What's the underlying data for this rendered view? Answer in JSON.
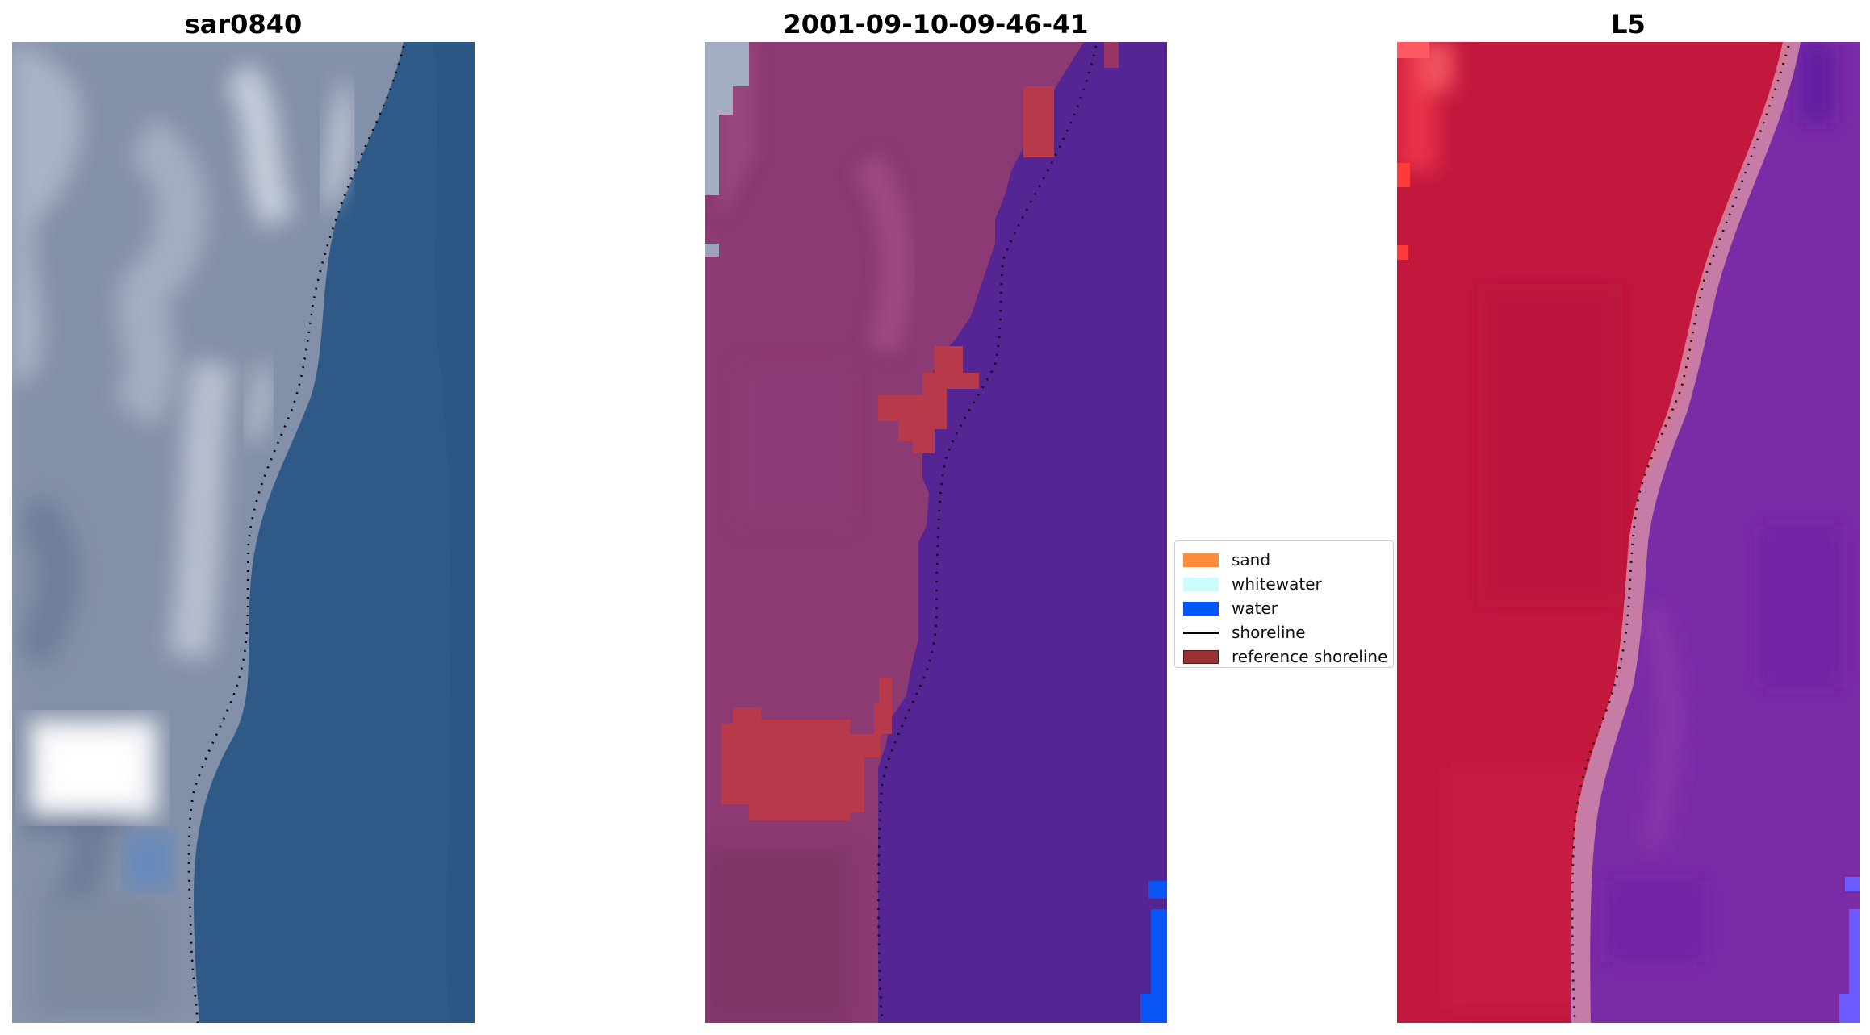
{
  "panels": [
    {
      "title": "sar0840",
      "view": "RGB composite"
    },
    {
      "title": "2001-09-10-09-46-41",
      "view": "classified image"
    },
    {
      "title": "L5",
      "view": "MNDWI"
    }
  ],
  "legend": {
    "items": [
      {
        "label": "sand",
        "color": "#ff8c3a"
      },
      {
        "label": "whitewater",
        "color": "#ccfdff"
      },
      {
        "label": "water",
        "color": "#0055ff"
      },
      {
        "label": "shoreline",
        "color": "#000000"
      },
      {
        "label": "reference shoreline",
        "color": "#993333"
      }
    ]
  },
  "colors": {
    "rgb_land": "#8a97ae",
    "rgb_water": "#2f5a88",
    "class_land": "#8b3a73",
    "class_water": "#552594",
    "class_red_patches": "#b8394a",
    "mndwi_land": "#c2183e",
    "mndwi_water": "#7a2ba6",
    "shoreline_dots": "#000000"
  }
}
